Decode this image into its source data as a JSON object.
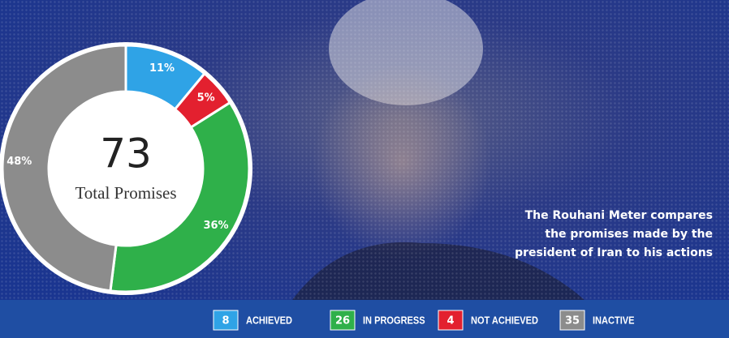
{
  "chart_data": {
    "type": "pie",
    "center_value": 73,
    "center_label": "Total Promises",
    "values": [
      11,
      5,
      36,
      48
    ],
    "value_labels": [
      "11%",
      "5%",
      "36%",
      "48%"
    ],
    "colors": [
      "#2fa3e6",
      "#e3202f",
      "#2fb04a",
      "#8c8c8c"
    ]
  },
  "legend": [
    {
      "count": 8,
      "label": "ACHIEVED",
      "color": "#2fa3e6"
    },
    {
      "count": 26,
      "label": "IN PROGRESS",
      "color": "#2fb04a"
    },
    {
      "count": 4,
      "label": "NOT ACHIEVED",
      "color": "#e3202f"
    },
    {
      "count": 35,
      "label": "INACTIVE",
      "color": "#8c8c8c"
    }
  ],
  "caption": [
    "The Rouhani Meter compares",
    "the promises made by the",
    "president of Iran to his actions"
  ]
}
